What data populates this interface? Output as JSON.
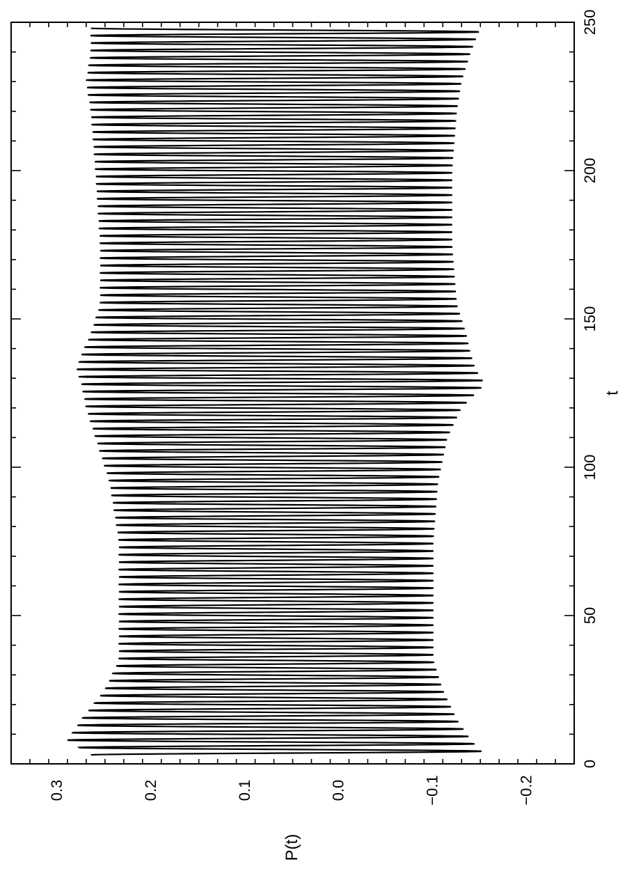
{
  "chart_data": {
    "type": "line",
    "orientation": "rotated-90",
    "title": "",
    "xlabel": "t",
    "ylabel": "P(t)",
    "xlim": [
      0,
      250
    ],
    "ylim": [
      -0.25,
      0.35
    ],
    "x_ticks": [
      0,
      50,
      100,
      150,
      200,
      250
    ],
    "x_tick_labels": [
      "0",
      "50",
      "100",
      "150",
      "200",
      "250"
    ],
    "y_ticks": [
      0.3,
      0.2,
      0.1,
      0.0,
      -0.1,
      -0.2
    ],
    "y_tick_labels": [
      "0.3",
      "0.2",
      "0.1",
      "0.0",
      "−0.1",
      "−0.2"
    ],
    "grid": false,
    "series": [
      {
        "color": "#000000",
        "oscillation_period": 2.5,
        "envelope": {
          "t": [
            3,
            8,
            15,
            25,
            35,
            50,
            75,
            95,
            110,
            120,
            128,
            133,
            138,
            145,
            155,
            175,
            200,
            220,
            230,
            240,
            248
          ],
          "upper": [
            0.265,
            0.29,
            0.275,
            0.25,
            0.235,
            0.235,
            0.235,
            0.245,
            0.26,
            0.27,
            0.275,
            0.28,
            0.275,
            0.265,
            0.255,
            0.255,
            0.26,
            0.265,
            0.27,
            0.265,
            0.265
          ],
          "lower": [
            -0.155,
            -0.14,
            -0.125,
            -0.11,
            -0.1,
            -0.1,
            -0.1,
            -0.105,
            -0.115,
            -0.13,
            -0.155,
            -0.145,
            -0.14,
            -0.135,
            -0.125,
            -0.12,
            -0.12,
            -0.125,
            -0.13,
            -0.14,
            -0.15
          ]
        }
      }
    ]
  }
}
